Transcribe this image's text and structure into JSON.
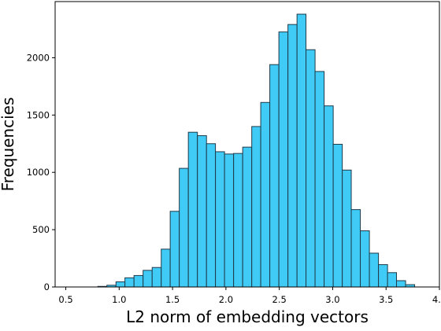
{
  "chart_data": {
    "type": "bar",
    "subtype": "histogram",
    "xlabel": "L2 norm of embedding vectors",
    "ylabel": "Frequencies",
    "xlim": [
      0.4,
      4.0
    ],
    "ylim": [
      0,
      2490
    ],
    "xticks": [
      0.5,
      1.0,
      1.5,
      2.0,
      2.5,
      3.0,
      3.5,
      4.0
    ],
    "xtick_labels": [
      "0.5",
      "1.0",
      "1.5",
      "2.0",
      "2.5",
      "3.0",
      "3.5",
      "4.0"
    ],
    "yticks": [
      0,
      500,
      1000,
      1500,
      2000
    ],
    "ytick_labels": [
      "0",
      "500",
      "1000",
      "1500",
      "2000"
    ],
    "bin_width": 0.0848,
    "bin_edges_start": 0.8,
    "bins": [
      {
        "x0": 0.8,
        "x1": 0.885,
        "value": 5
      },
      {
        "x0": 0.885,
        "x1": 0.97,
        "value": 15
      },
      {
        "x0": 0.97,
        "x1": 1.054,
        "value": 45
      },
      {
        "x0": 1.054,
        "x1": 1.139,
        "value": 80
      },
      {
        "x0": 1.139,
        "x1": 1.224,
        "value": 100
      },
      {
        "x0": 1.224,
        "x1": 1.309,
        "value": 145
      },
      {
        "x0": 1.309,
        "x1": 1.394,
        "value": 170
      },
      {
        "x0": 1.394,
        "x1": 1.478,
        "value": 330
      },
      {
        "x0": 1.478,
        "x1": 1.563,
        "value": 660
      },
      {
        "x0": 1.563,
        "x1": 1.648,
        "value": 1035
      },
      {
        "x0": 1.648,
        "x1": 1.733,
        "value": 1350
      },
      {
        "x0": 1.733,
        "x1": 1.818,
        "value": 1320
      },
      {
        "x0": 1.818,
        "x1": 1.902,
        "value": 1250
      },
      {
        "x0": 1.902,
        "x1": 1.987,
        "value": 1180
      },
      {
        "x0": 1.987,
        "x1": 2.072,
        "value": 1160
      },
      {
        "x0": 2.072,
        "x1": 2.157,
        "value": 1165
      },
      {
        "x0": 2.157,
        "x1": 2.242,
        "value": 1220
      },
      {
        "x0": 2.242,
        "x1": 2.326,
        "value": 1400
      },
      {
        "x0": 2.326,
        "x1": 2.411,
        "value": 1610
      },
      {
        "x0": 2.411,
        "x1": 2.496,
        "value": 1940
      },
      {
        "x0": 2.496,
        "x1": 2.581,
        "value": 2225
      },
      {
        "x0": 2.581,
        "x1": 2.666,
        "value": 2290
      },
      {
        "x0": 2.666,
        "x1": 2.75,
        "value": 2380
      },
      {
        "x0": 2.75,
        "x1": 2.835,
        "value": 2070
      },
      {
        "x0": 2.835,
        "x1": 2.92,
        "value": 1880
      },
      {
        "x0": 2.92,
        "x1": 3.005,
        "value": 1580
      },
      {
        "x0": 3.005,
        "x1": 3.09,
        "value": 1245
      },
      {
        "x0": 3.09,
        "x1": 3.174,
        "value": 1020
      },
      {
        "x0": 3.174,
        "x1": 3.259,
        "value": 675
      },
      {
        "x0": 3.259,
        "x1": 3.344,
        "value": 490
      },
      {
        "x0": 3.344,
        "x1": 3.429,
        "value": 295
      },
      {
        "x0": 3.429,
        "x1": 3.514,
        "value": 195
      },
      {
        "x0": 3.514,
        "x1": 3.598,
        "value": 125
      },
      {
        "x0": 3.598,
        "x1": 3.683,
        "value": 55
      },
      {
        "x0": 3.683,
        "x1": 3.768,
        "value": 20
      }
    ],
    "bar_color": "#3fcbf5",
    "bar_edge_color": "#1f3a4a",
    "grid": false,
    "legend": "none"
  }
}
